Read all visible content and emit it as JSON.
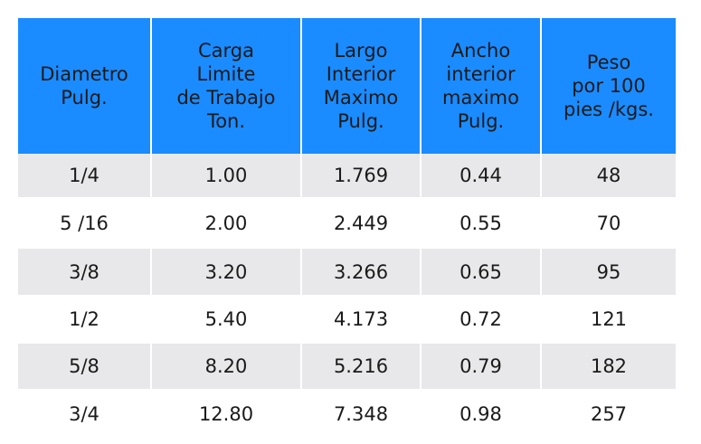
{
  "table": {
    "header": [
      [
        "Diametro",
        "Pulg."
      ],
      [
        "Carga",
        "Limite",
        "de Trabajo",
        "Ton."
      ],
      [
        "Largo",
        "Interior",
        "Maximo",
        "Pulg."
      ],
      [
        "Ancho",
        "interior",
        "maximo",
        "Pulg."
      ],
      [
        "Peso",
        "por 100",
        "pies /kgs."
      ]
    ],
    "rows": [
      [
        "1/4",
        "1.00",
        "1.769",
        "0.44",
        "48"
      ],
      [
        "5 /16",
        "2.00",
        "2.449",
        "0.55",
        "70"
      ],
      [
        "3/8",
        "3.20",
        "3.266",
        "0.65",
        "95"
      ],
      [
        "1/2",
        "5.40",
        "4.173",
        "0.72",
        "121"
      ],
      [
        "5/8",
        "8.20",
        "5.216",
        "0.79",
        "182"
      ],
      [
        "3/4",
        "12.80",
        "7.348",
        "0.98",
        "257"
      ]
    ]
  }
}
